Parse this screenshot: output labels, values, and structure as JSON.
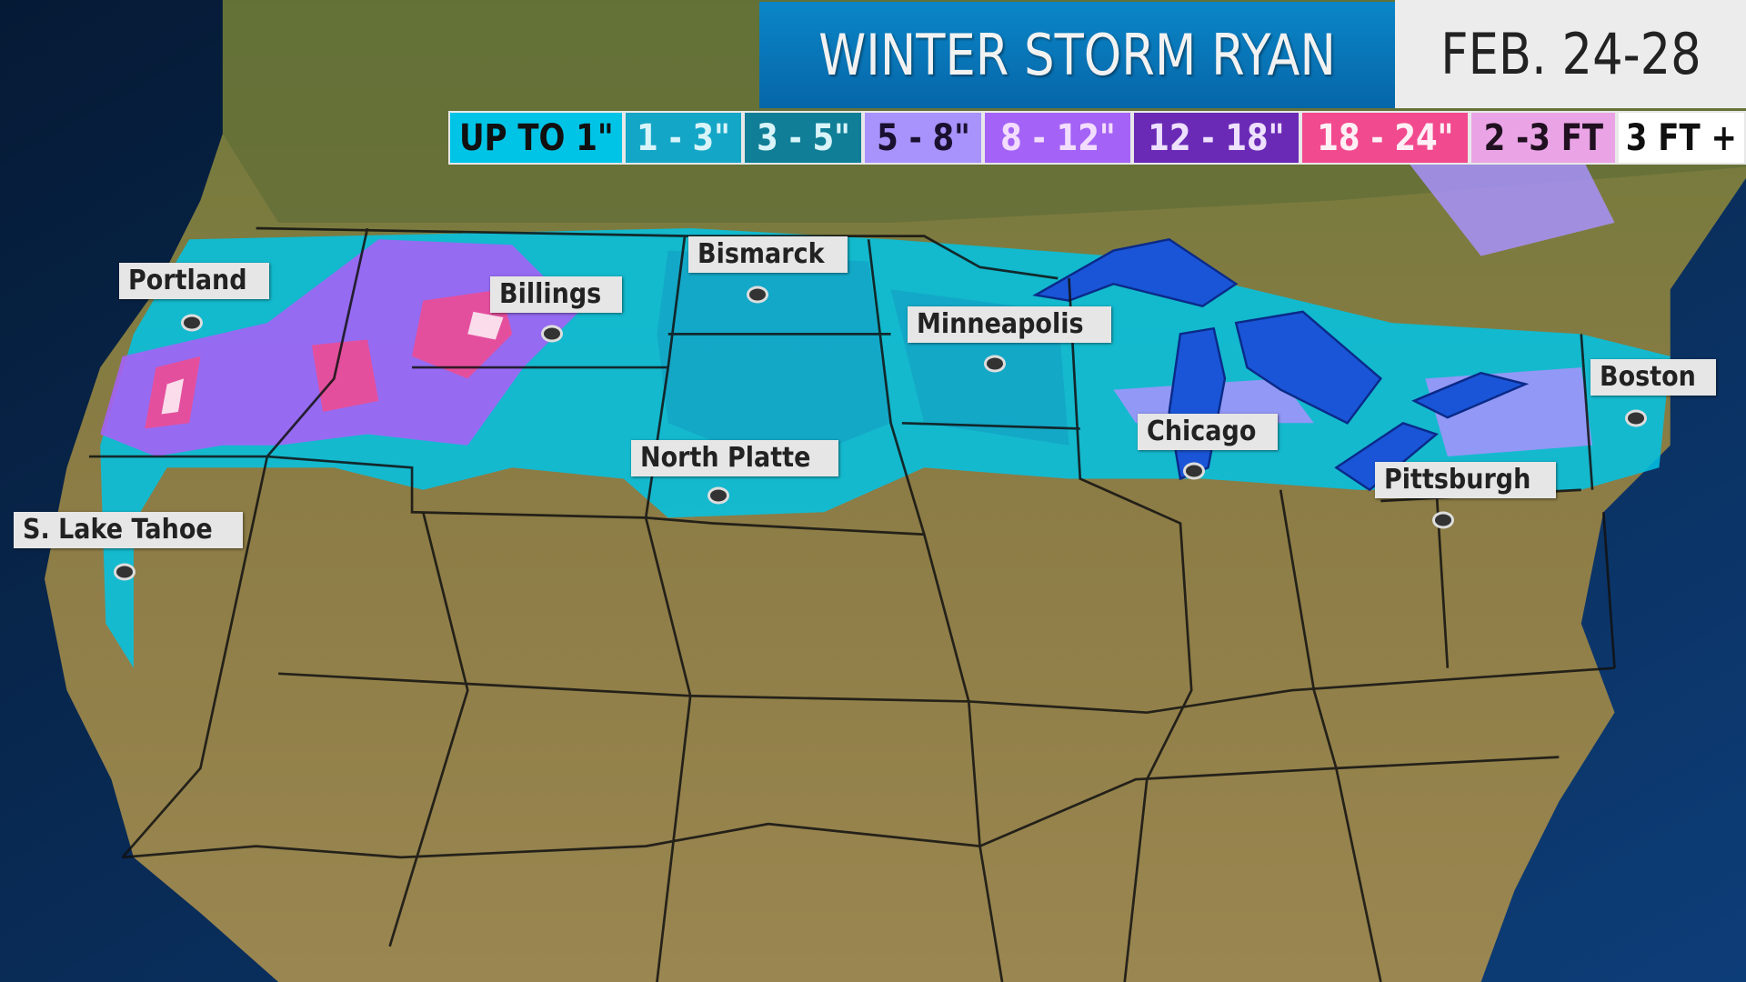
{
  "title": "WINTER STORM RYAN",
  "dates": "FEB. 24-28",
  "legend": [
    {
      "label": "UP TO 1\"",
      "bg": "#00c4e6",
      "fg": "#101010"
    },
    {
      "label": "1 - 3\"",
      "bg": "#14a6c6",
      "fg": "#d8f4fa"
    },
    {
      "label": "3 - 5\"",
      "bg": "#0f7e96",
      "fg": "#d8f4fa"
    },
    {
      "label": "5 - 8\"",
      "bg": "#a892fc",
      "fg": "#1a1030"
    },
    {
      "label": "8 - 12\"",
      "bg": "#a463f6",
      "fg": "#f3ddff"
    },
    {
      "label": "12 - 18\"",
      "bg": "#6a2ab6",
      "fg": "#eee0ff"
    },
    {
      "label": "18 - 24\"",
      "bg": "#f24a8e",
      "fg": "#fff0f6"
    },
    {
      "label": "2 -3 FT",
      "bg": "#eaa4e6",
      "fg": "#201020"
    },
    {
      "label": "3 FT +",
      "bg": "#ffffff",
      "fg": "#101010"
    }
  ],
  "cities": [
    {
      "name": "Portland"
    },
    {
      "name": "Billings"
    },
    {
      "name": "Bismarck"
    },
    {
      "name": "Minneapolis"
    },
    {
      "name": "Chicago"
    },
    {
      "name": "Boston"
    },
    {
      "name": "North Platte"
    },
    {
      "name": "Pittsburgh"
    },
    {
      "name": "S. Lake Tahoe"
    }
  ],
  "colors": {
    "ocean": "#0b2f5c",
    "land": "#8a7a40",
    "lakes": "#1a55d8"
  }
}
